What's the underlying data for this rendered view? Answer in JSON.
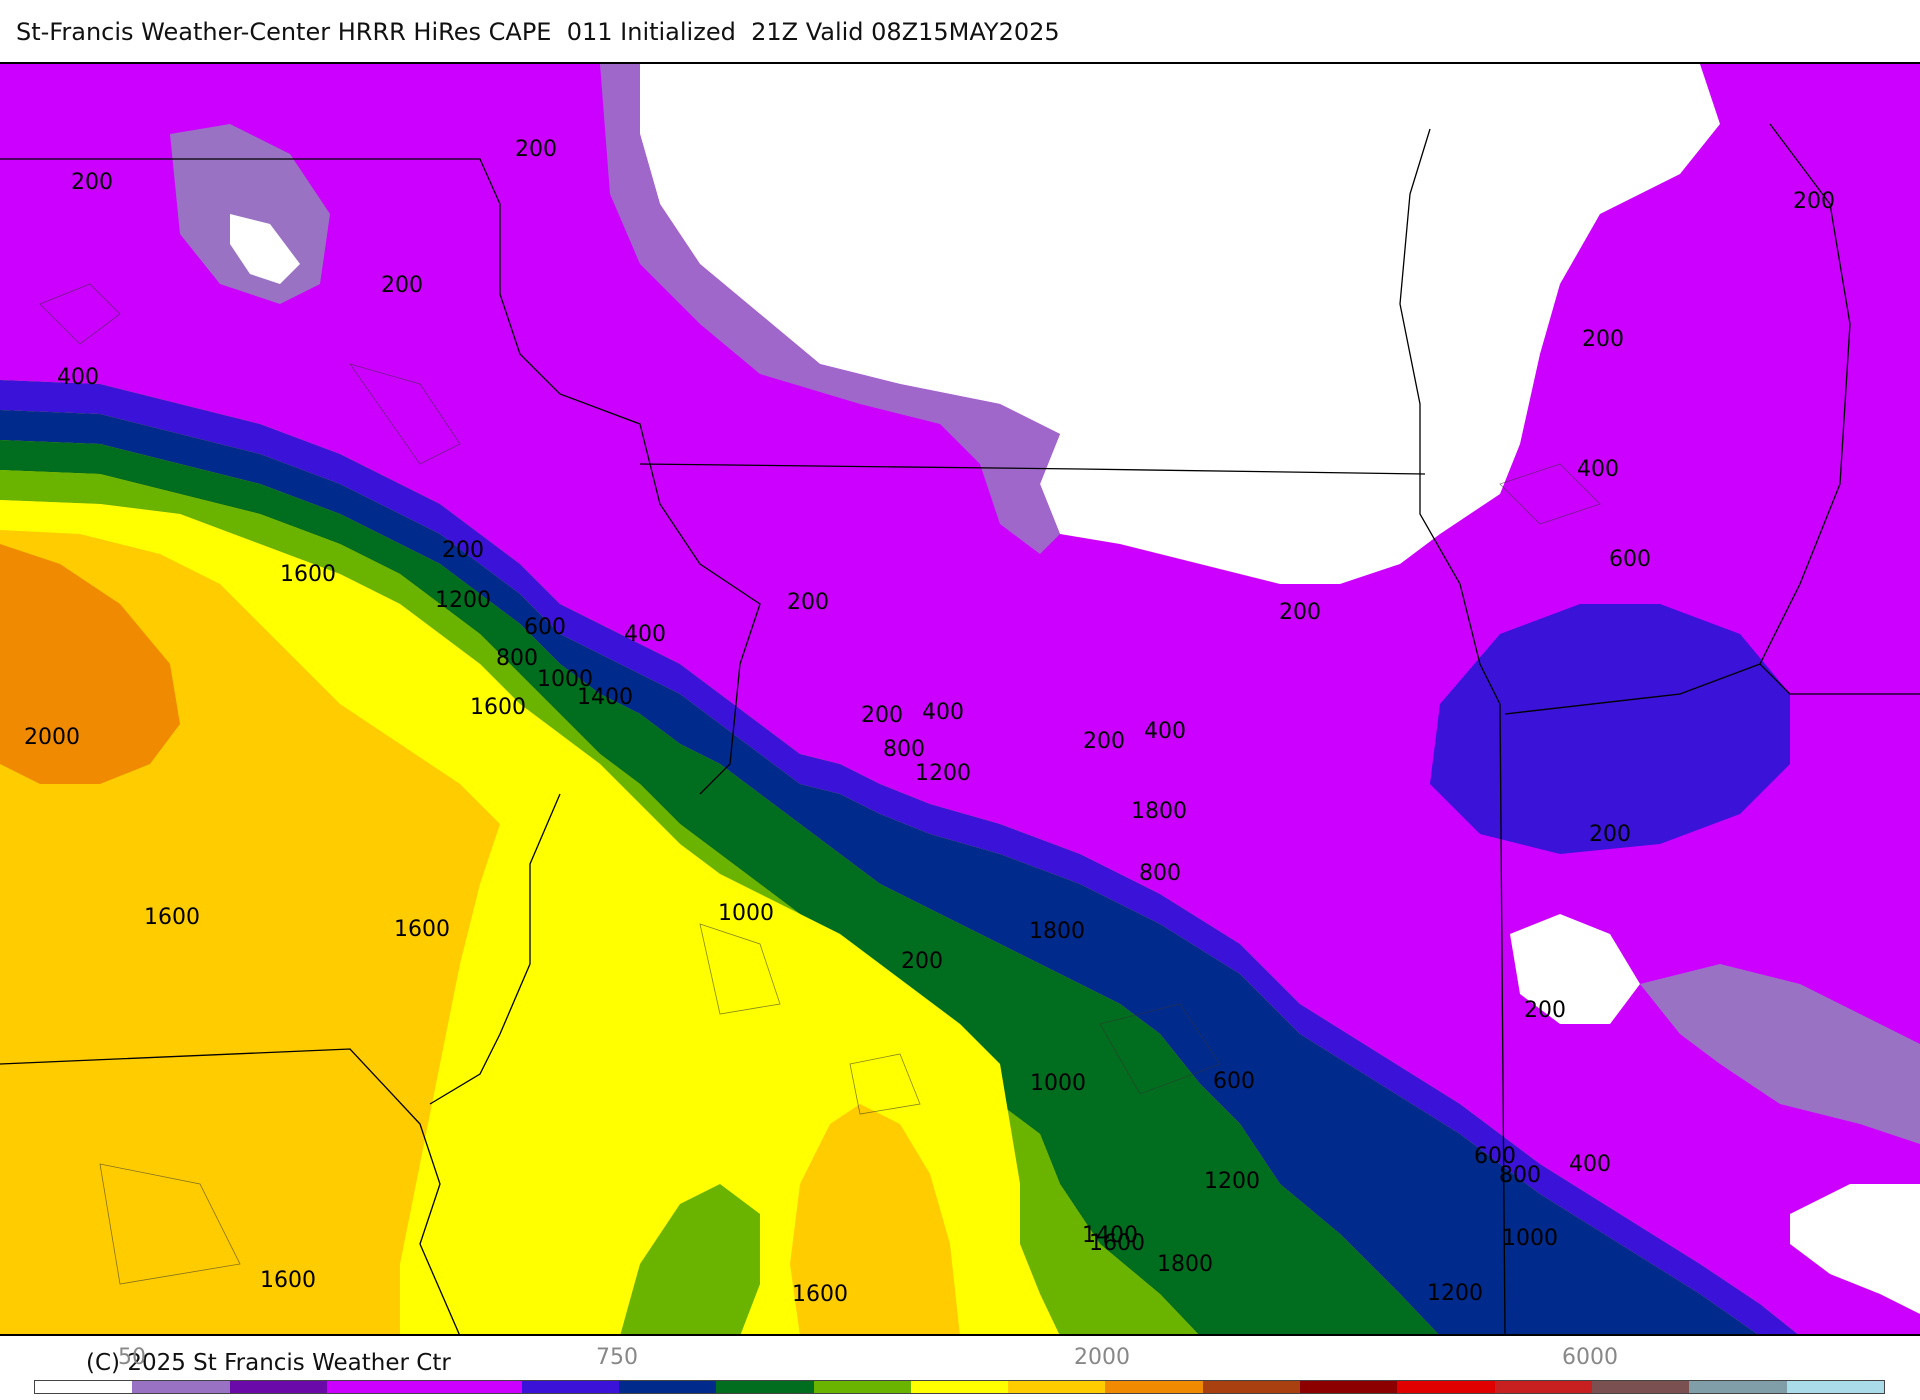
{
  "header": {
    "title": "St-Francis Weather-Center HRRR HiRes CAPE  011 Initialized  21Z Valid 08Z15MAY2025"
  },
  "footer": {
    "copyright": "(C) 2025 St Francis Weather Ctr",
    "colorbar_labels": [
      "50",
      "750",
      "2000",
      "6000"
    ]
  },
  "colorbar_colors": [
    "#ffffff",
    "#9a72c4",
    "#6a0aa8",
    "#cc00ff",
    "#cc00ff",
    "#3a12d8",
    "#002a8c",
    "#006e1e",
    "#6ab400",
    "#ffff00",
    "#ffcc00",
    "#f08a00",
    "#a84010",
    "#8c0000",
    "#e00000",
    "#c82020",
    "#7a5050",
    "#7f9ea8",
    "#aadbe8"
  ],
  "map": {
    "fills": {
      "white": "#ffffff",
      "lavender": "#9a72c4",
      "dark_purple": "#6a0aa8",
      "magenta": "#cc00ff",
      "blue": "#3a12d8",
      "navy": "#002a8c",
      "dark_green": "#006e1e",
      "green": "#6ab400",
      "yellow": "#ffff00",
      "gold": "#ffcc00",
      "orange": "#f08a00"
    },
    "contour_labels": [
      "200",
      "200",
      "200",
      "400",
      "200",
      "1600",
      "1200",
      "600",
      "400",
      "800",
      "1000",
      "1400",
      "1600",
      "2000",
      "200",
      "200",
      "200",
      "200",
      "400",
      "600",
      "200",
      "400",
      "200",
      "200",
      "600",
      "800",
      "1000",
      "200",
      "400",
      "800",
      "1200",
      "1800",
      "1800",
      "1600",
      "1600",
      "1000",
      "200",
      "600",
      "400",
      "800",
      "1000",
      "1200",
      "1600",
      "1800",
      "1600",
      "1200",
      "1400",
      "1600"
    ]
  }
}
